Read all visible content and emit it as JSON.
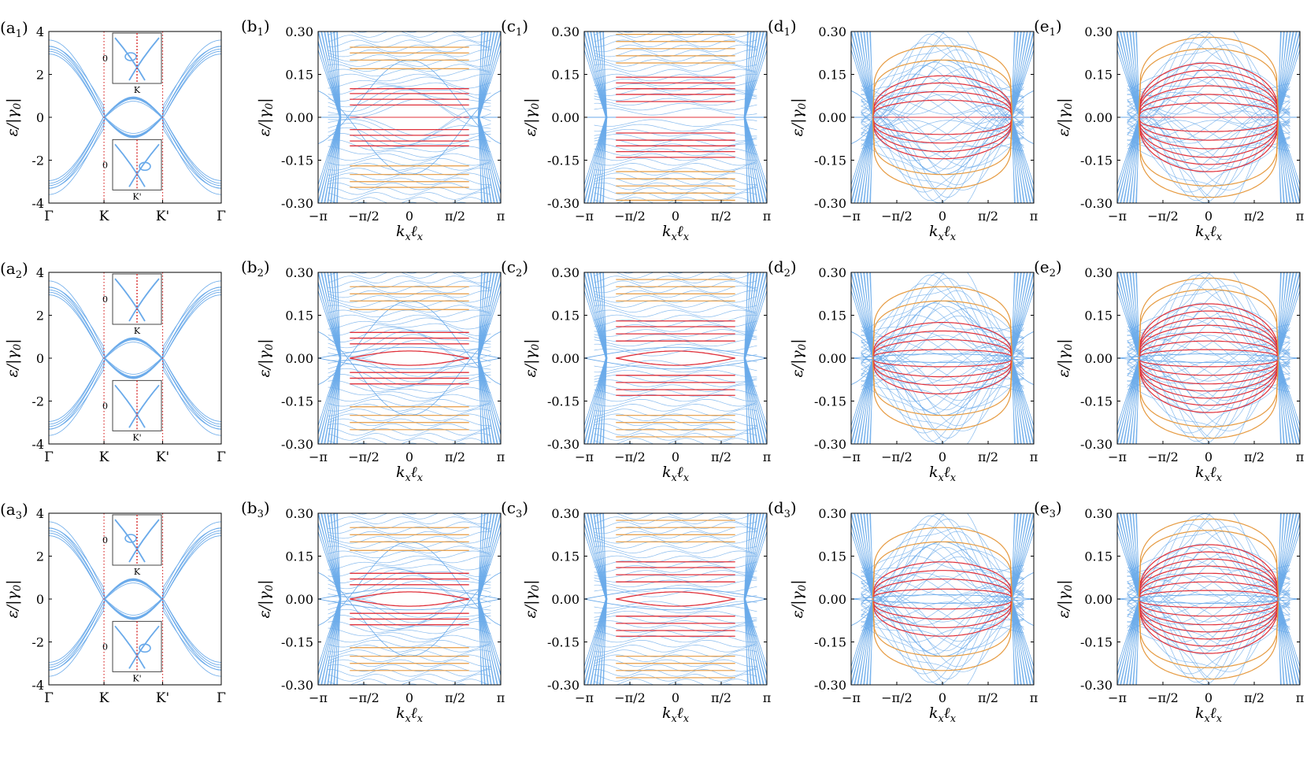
{
  "colors": {
    "blue": "#6aaaea",
    "red": "#e0303a",
    "orange": "#e69a40",
    "dot": "#d83030",
    "axis": "#000000"
  },
  "chart_data": [
    {
      "type": "line",
      "panel": "a",
      "title_letter": "a",
      "title_index": "1",
      "xlabel": "",
      "ylabel": "ε/|γ0|",
      "xticks": [
        "Γ",
        "K",
        "K'",
        "Γ"
      ],
      "yticks": [
        4,
        2,
        0,
        -2,
        -4
      ],
      "ylim": [
        -4,
        4
      ],
      "inset_labels": {
        "top": "K",
        "bottom": "K'",
        "zero": "0"
      },
      "variant": 1
    },
    {
      "type": "line",
      "panel": "b",
      "title_letter": "b",
      "title_index": "1",
      "xlabel": "kxℓx",
      "ylabel": "ε/|γ0|",
      "xticks": [
        "−π",
        "−π/2",
        "0",
        "π/2",
        "π"
      ],
      "yticks": [
        "0.30",
        "0.15",
        "0.00",
        "-0.15",
        "-0.30"
      ],
      "ylim": [
        -0.3,
        0.3
      ],
      "series": [
        {
          "name": "bulk",
          "color": "blue"
        },
        {
          "name": "flat bands (red)",
          "color": "red",
          "levels": [
            0.043,
            0.063,
            0.083,
            0.1
          ]
        },
        {
          "name": "flat bands (orange)",
          "color": "orange",
          "levels": [
            0.17,
            0.2,
            0.225,
            0.245
          ]
        }
      ],
      "variant": 1
    },
    {
      "type": "line",
      "panel": "c",
      "title_letter": "c",
      "title_index": "1",
      "xlabel": "kxℓx",
      "ylabel": "ε/|γ0|",
      "xticks": [
        "−π",
        "−π/2",
        "0",
        "π/2",
        "π"
      ],
      "yticks": [
        "0.30",
        "0.15",
        "0.00",
        "-0.15",
        "-0.30"
      ],
      "ylim": [
        -0.3,
        0.3
      ],
      "series": [
        {
          "name": "bulk",
          "color": "blue"
        },
        {
          "name": "flat bands (red)",
          "color": "red",
          "levels": [
            0.055,
            0.08,
            0.1,
            0.12,
            0.14
          ]
        },
        {
          "name": "flat bands (orange)",
          "color": "orange",
          "levels": [
            0.19,
            0.215,
            0.24,
            0.265,
            0.29
          ]
        }
      ],
      "variant": 1
    },
    {
      "type": "line",
      "panel": "d",
      "title_letter": "d",
      "title_index": "1",
      "xlabel": "kxℓx",
      "ylabel": "ε/|γ0|",
      "xticks": [
        "−π",
        "−π/2",
        "0",
        "π/2",
        "π"
      ],
      "yticks": [
        "0.30",
        "0.15",
        "0.00",
        "-0.15",
        "-0.30"
      ],
      "ylim": [
        -0.3,
        0.3
      ],
      "series": [
        {
          "name": "bulk",
          "color": "blue"
        },
        {
          "name": "arcs (red)",
          "color": "red",
          "levels": [
            0.06,
            0.09,
            0.12,
            0.145
          ]
        },
        {
          "name": "arcs (orange)",
          "color": "orange",
          "levels": [
            0.2,
            0.25
          ]
        }
      ],
      "variant": 1
    },
    {
      "type": "line",
      "panel": "e",
      "title_letter": "e",
      "title_index": "1",
      "xlabel": "kxℓx",
      "ylabel": "ε/|γ0|",
      "xticks": [
        "−π",
        "−π/2",
        "0",
        "π/2",
        "π"
      ],
      "yticks": [
        "0.30",
        "0.15",
        "0.00",
        "-0.15",
        "-0.30"
      ],
      "ylim": [
        -0.3,
        0.3
      ],
      "series": [
        {
          "name": "bulk",
          "color": "blue"
        },
        {
          "name": "arcs (red)",
          "color": "red",
          "levels": [
            0.05,
            0.08,
            0.11,
            0.14,
            0.165,
            0.19
          ]
        },
        {
          "name": "arcs (orange)",
          "color": "orange",
          "levels": [
            0.24,
            0.28
          ]
        }
      ],
      "variant": 1
    },
    {
      "type": "line",
      "panel": "a",
      "title_letter": "a",
      "title_index": "2",
      "xlabel": "",
      "ylabel": "ε/|γ0|",
      "xticks": [
        "Γ",
        "K",
        "K'",
        "Γ"
      ],
      "yticks": [
        4,
        2,
        0,
        -2,
        -4
      ],
      "ylim": [
        -4,
        4
      ],
      "inset_labels": {
        "top": "K",
        "bottom": "K'",
        "zero": "0"
      },
      "variant": 2
    },
    {
      "type": "line",
      "panel": "b",
      "title_letter": "b",
      "title_index": "2",
      "xlabel": "kxℓx",
      "ylabel": "ε/|γ0|",
      "xticks": [
        "−π",
        "−π/2",
        "0",
        "π/2",
        "π"
      ],
      "yticks": [
        "0.30",
        "0.15",
        "0.00",
        "-0.15",
        "-0.30"
      ],
      "ylim": [
        -0.3,
        0.3
      ],
      "series": [
        {
          "name": "bulk",
          "color": "blue"
        },
        {
          "name": "flat bands (red)",
          "color": "red",
          "levels": [
            0.05,
            0.07,
            0.09
          ]
        },
        {
          "name": "flat bands (orange)",
          "color": "orange",
          "levels": [
            0.17,
            0.2,
            0.225,
            0.25
          ]
        },
        {
          "name": "edge arc",
          "color": "red",
          "levels": [
            0.025
          ]
        }
      ],
      "variant": 2
    },
    {
      "type": "line",
      "panel": "c",
      "title_letter": "c",
      "title_index": "2",
      "xlabel": "kxℓx",
      "ylabel": "ε/|γ0|",
      "xticks": [
        "−π",
        "−π/2",
        "0",
        "π/2",
        "π"
      ],
      "yticks": [
        "0.30",
        "0.15",
        "0.00",
        "-0.15",
        "-0.30"
      ],
      "ylim": [
        -0.3,
        0.3
      ],
      "series": [
        {
          "name": "bulk",
          "color": "blue"
        },
        {
          "name": "flat bands (red)",
          "color": "red",
          "levels": [
            0.06,
            0.085,
            0.11,
            0.13
          ]
        },
        {
          "name": "flat bands (orange)",
          "color": "orange",
          "levels": [
            0.2,
            0.225,
            0.25,
            0.275
          ]
        },
        {
          "name": "edge arc",
          "color": "red",
          "levels": [
            0.025
          ]
        }
      ],
      "variant": 2
    },
    {
      "type": "line",
      "panel": "d",
      "title_letter": "d",
      "title_index": "2",
      "xlabel": "kxℓx",
      "ylabel": "ε/|γ0|",
      "xticks": [
        "−π",
        "−π/2",
        "0",
        "π/2",
        "π"
      ],
      "yticks": [
        "0.30",
        "0.15",
        "0.00",
        "-0.15",
        "-0.30"
      ],
      "ylim": [
        -0.3,
        0.3
      ],
      "series": [
        {
          "name": "bulk",
          "color": "blue"
        },
        {
          "name": "arcs (red)",
          "color": "red",
          "levels": [
            0.03,
            0.065,
            0.095,
            0.125
          ]
        },
        {
          "name": "arcs (orange)",
          "color": "orange",
          "levels": [
            0.2,
            0.25
          ]
        }
      ],
      "variant": 2
    },
    {
      "type": "line",
      "panel": "e",
      "title_letter": "e",
      "title_index": "2",
      "xlabel": "kxℓx",
      "ylabel": "ε/|γ0|",
      "xticks": [
        "−π",
        "−π/2",
        "0",
        "π/2",
        "π"
      ],
      "yticks": [
        "0.30",
        "0.15",
        "0.00",
        "-0.15",
        "-0.30"
      ],
      "ylim": [
        -0.3,
        0.3
      ],
      "series": [
        {
          "name": "bulk",
          "color": "blue"
        },
        {
          "name": "arcs (red)",
          "color": "red",
          "levels": [
            0.03,
            0.06,
            0.09,
            0.115,
            0.14,
            0.165,
            0.19
          ]
        },
        {
          "name": "arcs (orange)",
          "color": "orange",
          "levels": [
            0.24,
            0.28
          ]
        }
      ],
      "variant": 2
    },
    {
      "type": "line",
      "panel": "a",
      "title_letter": "a",
      "title_index": "3",
      "xlabel": "",
      "ylabel": "ε/|γ0|",
      "xticks": [
        "Γ",
        "K",
        "K'",
        "Γ"
      ],
      "yticks": [
        4,
        2,
        0,
        -2,
        -4
      ],
      "ylim": [
        -4,
        4
      ],
      "inset_labels": {
        "top": "K",
        "bottom": "K'",
        "zero": "0"
      },
      "variant": 3
    },
    {
      "type": "line",
      "panel": "b",
      "title_letter": "b",
      "title_index": "3",
      "xlabel": "kxℓx",
      "ylabel": "ε/|γ0|",
      "xticks": [
        "−π",
        "−π/2",
        "0",
        "π/2",
        "π"
      ],
      "yticks": [
        "0.30",
        "0.15",
        "0.00",
        "-0.15",
        "-0.30"
      ],
      "ylim": [
        -0.3,
        0.3
      ],
      "series": [
        {
          "name": "bulk",
          "color": "blue"
        },
        {
          "name": "flat bands (red)",
          "color": "red",
          "levels": [
            0.05,
            0.07,
            0.09
          ]
        },
        {
          "name": "flat bands (orange)",
          "color": "orange",
          "levels": [
            0.17,
            0.2,
            0.225,
            0.25
          ]
        },
        {
          "name": "edge arc",
          "color": "red",
          "levels": [
            0.025
          ]
        }
      ],
      "variant": 3
    },
    {
      "type": "line",
      "panel": "c",
      "title_letter": "c",
      "title_index": "3",
      "xlabel": "kxℓx",
      "ylabel": "ε/|γ0|",
      "xticks": [
        "−π",
        "−π/2",
        "0",
        "π/2",
        "π"
      ],
      "yticks": [
        "0.30",
        "0.15",
        "0.00",
        "-0.15",
        "-0.30"
      ],
      "ylim": [
        -0.3,
        0.3
      ],
      "series": [
        {
          "name": "bulk",
          "color": "blue"
        },
        {
          "name": "flat bands (red)",
          "color": "red",
          "levels": [
            0.06,
            0.085,
            0.11,
            0.13
          ]
        },
        {
          "name": "flat bands (orange)",
          "color": "orange",
          "levels": [
            0.2,
            0.225,
            0.25,
            0.275
          ]
        },
        {
          "name": "edge arc",
          "color": "red",
          "levels": [
            0.025
          ]
        }
      ],
      "variant": 3
    },
    {
      "type": "line",
      "panel": "d",
      "title_letter": "d",
      "title_index": "3",
      "xlabel": "kxℓx",
      "ylabel": "ε/|γ0|",
      "xticks": [
        "−π",
        "−π/2",
        "0",
        "π/2",
        "π"
      ],
      "yticks": [
        "0.30",
        "0.15",
        "0.00",
        "-0.15",
        "-0.30"
      ],
      "ylim": [
        -0.3,
        0.3
      ],
      "series": [
        {
          "name": "bulk",
          "color": "blue"
        },
        {
          "name": "arcs (red)",
          "color": "red",
          "levels": [
            0.035,
            0.07,
            0.1,
            0.13
          ]
        },
        {
          "name": "arcs (orange)",
          "color": "orange",
          "levels": [
            0.2,
            0.25
          ]
        }
      ],
      "variant": 3
    },
    {
      "type": "line",
      "panel": "e",
      "title_letter": "e",
      "title_index": "3",
      "xlabel": "kxℓx",
      "ylabel": "ε/|γ0|",
      "xticks": [
        "−π",
        "−π/2",
        "0",
        "π/2",
        "π"
      ],
      "yticks": [
        "0.30",
        "0.15",
        "0.00",
        "-0.15",
        "-0.30"
      ],
      "ylim": [
        -0.3,
        0.3
      ],
      "series": [
        {
          "name": "bulk",
          "color": "blue"
        },
        {
          "name": "arcs (red)",
          "color": "red",
          "levels": [
            0.03,
            0.06,
            0.09,
            0.115,
            0.14,
            0.165,
            0.19
          ]
        },
        {
          "name": "arcs (orange)",
          "color": "orange",
          "levels": [
            0.24,
            0.28
          ]
        }
      ],
      "variant": 3
    }
  ]
}
